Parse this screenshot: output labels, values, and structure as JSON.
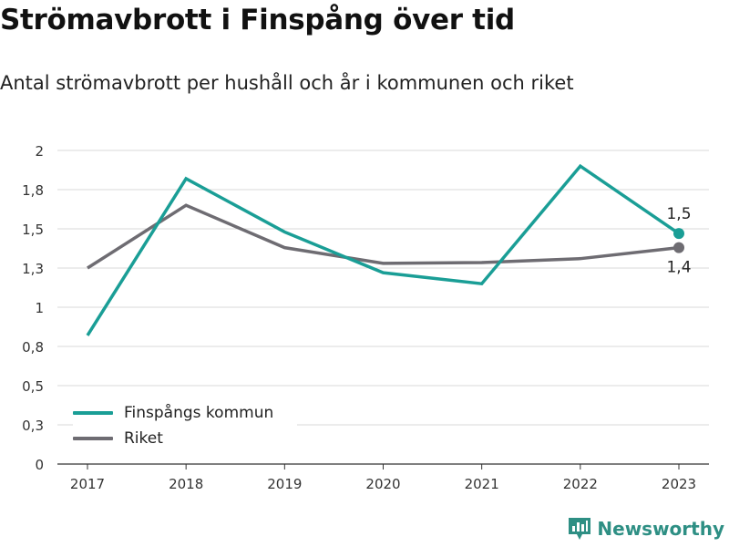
{
  "chart_data": {
    "type": "line",
    "title": "Strömavbrott i Finspång över tid",
    "subtitle": "Antal strömavbrott per hushåll och år i kommunen och riket",
    "xlabel": "",
    "ylabel": "",
    "categories": [
      "2017",
      "2018",
      "2019",
      "2020",
      "2021",
      "2022",
      "2023"
    ],
    "ylim": [
      0,
      2
    ],
    "y_ticks": [
      0,
      0.25,
      0.5,
      0.75,
      1,
      1.25,
      1.5,
      1.75,
      2
    ],
    "y_tick_labels": [
      "0",
      "0,3",
      "0,5",
      "0,8",
      "1",
      "1,3",
      "1,5",
      "1,8",
      "2"
    ],
    "grid": "horizontal",
    "legend_position": "bottom-left",
    "series": [
      {
        "name": "Finspångs kommun",
        "color": "#1a9e96",
        "values": [
          0.82,
          1.82,
          1.48,
          1.22,
          1.15,
          1.9,
          1.47
        ],
        "end_label": "1,5"
      },
      {
        "name": "Riket",
        "color": "#6e6c72",
        "values": [
          1.25,
          1.65,
          1.38,
          1.28,
          1.285,
          1.31,
          1.38
        ],
        "end_label": "1,4"
      }
    ]
  },
  "brand": {
    "name": "Newsworthy",
    "icon": "newsworthy-logo-icon",
    "color": "#2e8f84"
  }
}
